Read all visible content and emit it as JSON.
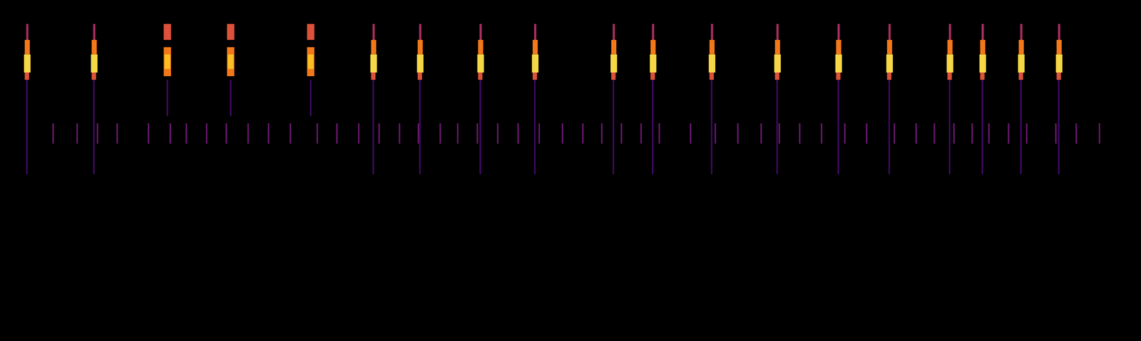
{
  "chart_data": {
    "type": "spectrogram",
    "tick_labels": false,
    "color": "inferno",
    "xlim": [
      0,
      1568
    ],
    "ylim": [
      0,
      470
    ],
    "zlim": [
      0,
      1
    ],
    "cells": [
      [
        72,
        74,
        272,
        300,
        0.3
      ],
      [
        105,
        107,
        272,
        300,
        0.3
      ],
      [
        133,
        135,
        272,
        300,
        0.3
      ],
      [
        160,
        162,
        272,
        300,
        0.3
      ],
      [
        203,
        205,
        272,
        300,
        0.3
      ],
      [
        233,
        235,
        272,
        300,
        0.3
      ],
      [
        255,
        257,
        272,
        300,
        0.3
      ],
      [
        283,
        285,
        272,
        300,
        0.3
      ],
      [
        310,
        312,
        272,
        300,
        0.3
      ],
      [
        340,
        342,
        272,
        300,
        0.3
      ],
      [
        368,
        370,
        272,
        300,
        0.3
      ],
      [
        398,
        400,
        272,
        300,
        0.3
      ],
      [
        435,
        437,
        272,
        300,
        0.3
      ],
      [
        462,
        464,
        272,
        300,
        0.3
      ],
      [
        492,
        494,
        272,
        300,
        0.3
      ],
      [
        520,
        522,
        272,
        300,
        0.3
      ],
      [
        548,
        550,
        272,
        300,
        0.3
      ],
      [
        574,
        576,
        272,
        300,
        0.3
      ],
      [
        604,
        606,
        272,
        300,
        0.3
      ],
      [
        628,
        630,
        272,
        300,
        0.3
      ],
      [
        655,
        657,
        272,
        300,
        0.3
      ],
      [
        683,
        685,
        272,
        300,
        0.3
      ],
      [
        711,
        713,
        272,
        300,
        0.3
      ],
      [
        740,
        742,
        272,
        300,
        0.3
      ],
      [
        772,
        774,
        272,
        300,
        0.3
      ],
      [
        800,
        802,
        272,
        300,
        0.3
      ],
      [
        826,
        828,
        272,
        300,
        0.3
      ],
      [
        853,
        855,
        272,
        300,
        0.3
      ],
      [
        880,
        882,
        272,
        300,
        0.3
      ],
      [
        905,
        907,
        272,
        300,
        0.3
      ],
      [
        948,
        950,
        272,
        300,
        0.3
      ],
      [
        982,
        984,
        272,
        300,
        0.3
      ],
      [
        1013,
        1015,
        272,
        300,
        0.3
      ],
      [
        1045,
        1047,
        272,
        300,
        0.3
      ],
      [
        1070,
        1072,
        272,
        300,
        0.3
      ],
      [
        1098,
        1100,
        272,
        300,
        0.3
      ],
      [
        1128,
        1130,
        272,
        300,
        0.3
      ],
      [
        1160,
        1162,
        272,
        300,
        0.3
      ],
      [
        1190,
        1192,
        272,
        300,
        0.3
      ],
      [
        1228,
        1230,
        272,
        300,
        0.3
      ],
      [
        1258,
        1260,
        272,
        300,
        0.3
      ],
      [
        1283,
        1285,
        272,
        300,
        0.3
      ],
      [
        1310,
        1312,
        272,
        300,
        0.3
      ],
      [
        1335,
        1337,
        272,
        300,
        0.3
      ],
      [
        1358,
        1360,
        272,
        300,
        0.3
      ],
      [
        1385,
        1387,
        272,
        300,
        0.3
      ],
      [
        1410,
        1412,
        272,
        300,
        0.3
      ],
      [
        1450,
        1452,
        272,
        300,
        0.3
      ],
      [
        1478,
        1480,
        272,
        300,
        0.3
      ],
      [
        1510,
        1512,
        272,
        300,
        0.3
      ],
      [
        36,
        38,
        230,
        360,
        0.2
      ],
      [
        36,
        39,
        415,
        437,
        0.45
      ],
      [
        34,
        41,
        395,
        415,
        0.7
      ],
      [
        33,
        42,
        370,
        395,
        0.9
      ],
      [
        34,
        40,
        360,
        370,
        0.6
      ],
      [
        128,
        130,
        230,
        360,
        0.2
      ],
      [
        128,
        131,
        415,
        437,
        0.45
      ],
      [
        126,
        133,
        395,
        415,
        0.7
      ],
      [
        125,
        134,
        370,
        395,
        0.9
      ],
      [
        126,
        132,
        360,
        370,
        0.6
      ],
      [
        229,
        231,
        310,
        360,
        0.2
      ],
      [
        225,
        235,
        415,
        437,
        0.6
      ],
      [
        225,
        235,
        365,
        405,
        0.7
      ],
      [
        226,
        234,
        375,
        395,
        0.85
      ],
      [
        316,
        318,
        310,
        360,
        0.2
      ],
      [
        312,
        322,
        415,
        437,
        0.6
      ],
      [
        312,
        322,
        365,
        405,
        0.7
      ],
      [
        313,
        321,
        375,
        395,
        0.85
      ],
      [
        426,
        428,
        310,
        360,
        0.2
      ],
      [
        422,
        432,
        415,
        437,
        0.6
      ],
      [
        422,
        432,
        365,
        405,
        0.7
      ],
      [
        423,
        431,
        375,
        395,
        0.85
      ],
      [
        512,
        514,
        230,
        360,
        0.2
      ],
      [
        512,
        515,
        415,
        437,
        0.45
      ],
      [
        510,
        517,
        395,
        415,
        0.7
      ],
      [
        509,
        518,
        370,
        395,
        0.9
      ],
      [
        510,
        516,
        360,
        370,
        0.6
      ],
      [
        576,
        578,
        230,
        360,
        0.2
      ],
      [
        576,
        579,
        415,
        437,
        0.45
      ],
      [
        574,
        581,
        395,
        415,
        0.7
      ],
      [
        573,
        582,
        370,
        395,
        0.9
      ],
      [
        574,
        580,
        360,
        370,
        0.6
      ],
      [
        659,
        661,
        230,
        360,
        0.2
      ],
      [
        659,
        662,
        415,
        437,
        0.45
      ],
      [
        657,
        664,
        395,
        415,
        0.7
      ],
      [
        656,
        665,
        370,
        395,
        0.9
      ],
      [
        657,
        663,
        360,
        370,
        0.6
      ],
      [
        734,
        736,
        230,
        360,
        0.2
      ],
      [
        734,
        737,
        415,
        437,
        0.45
      ],
      [
        732,
        739,
        395,
        415,
        0.7
      ],
      [
        731,
        740,
        370,
        395,
        0.9
      ],
      [
        732,
        738,
        360,
        370,
        0.6
      ],
      [
        842,
        844,
        230,
        360,
        0.2
      ],
      [
        842,
        845,
        415,
        437,
        0.45
      ],
      [
        840,
        847,
        395,
        415,
        0.7
      ],
      [
        839,
        848,
        370,
        395,
        0.9
      ],
      [
        840,
        846,
        360,
        370,
        0.6
      ],
      [
        896,
        898,
        230,
        360,
        0.2
      ],
      [
        896,
        899,
        415,
        437,
        0.45
      ],
      [
        894,
        901,
        395,
        415,
        0.7
      ],
      [
        893,
        902,
        370,
        395,
        0.9
      ],
      [
        894,
        900,
        360,
        370,
        0.6
      ],
      [
        977,
        979,
        230,
        360,
        0.2
      ],
      [
        977,
        980,
        415,
        437,
        0.45
      ],
      [
        975,
        982,
        395,
        415,
        0.7
      ],
      [
        974,
        983,
        370,
        395,
        0.9
      ],
      [
        975,
        981,
        360,
        370,
        0.6
      ],
      [
        1067,
        1069,
        230,
        360,
        0.2
      ],
      [
        1067,
        1070,
        415,
        437,
        0.45
      ],
      [
        1065,
        1072,
        395,
        415,
        0.7
      ],
      [
        1064,
        1073,
        370,
        395,
        0.9
      ],
      [
        1065,
        1071,
        360,
        370,
        0.6
      ],
      [
        1151,
        1153,
        230,
        360,
        0.2
      ],
      [
        1151,
        1154,
        415,
        437,
        0.45
      ],
      [
        1149,
        1156,
        395,
        415,
        0.7
      ],
      [
        1148,
        1157,
        370,
        395,
        0.9
      ],
      [
        1149,
        1155,
        360,
        370,
        0.6
      ],
      [
        1221,
        1223,
        230,
        360,
        0.2
      ],
      [
        1221,
        1224,
        415,
        437,
        0.45
      ],
      [
        1219,
        1226,
        395,
        415,
        0.7
      ],
      [
        1218,
        1227,
        370,
        395,
        0.9
      ],
      [
        1219,
        1225,
        360,
        370,
        0.6
      ],
      [
        1304,
        1306,
        230,
        360,
        0.2
      ],
      [
        1304,
        1307,
        415,
        437,
        0.45
      ],
      [
        1302,
        1309,
        395,
        415,
        0.7
      ],
      [
        1301,
        1310,
        370,
        395,
        0.9
      ],
      [
        1302,
        1308,
        360,
        370,
        0.6
      ],
      [
        1349,
        1351,
        230,
        360,
        0.2
      ],
      [
        1349,
        1352,
        415,
        437,
        0.45
      ],
      [
        1347,
        1354,
        395,
        415,
        0.7
      ],
      [
        1346,
        1355,
        370,
        395,
        0.9
      ],
      [
        1347,
        1353,
        360,
        370,
        0.6
      ],
      [
        1402,
        1404,
        230,
        360,
        0.2
      ],
      [
        1402,
        1405,
        415,
        437,
        0.45
      ],
      [
        1400,
        1407,
        395,
        415,
        0.7
      ],
      [
        1399,
        1408,
        370,
        395,
        0.9
      ],
      [
        1400,
        1406,
        360,
        370,
        0.6
      ],
      [
        1454,
        1456,
        230,
        360,
        0.2
      ],
      [
        1454,
        1457,
        415,
        437,
        0.45
      ],
      [
        1452,
        1459,
        395,
        415,
        0.7
      ],
      [
        1451,
        1460,
        370,
        395,
        0.9
      ],
      [
        1452,
        1458,
        360,
        370,
        0.6
      ]
    ]
  }
}
